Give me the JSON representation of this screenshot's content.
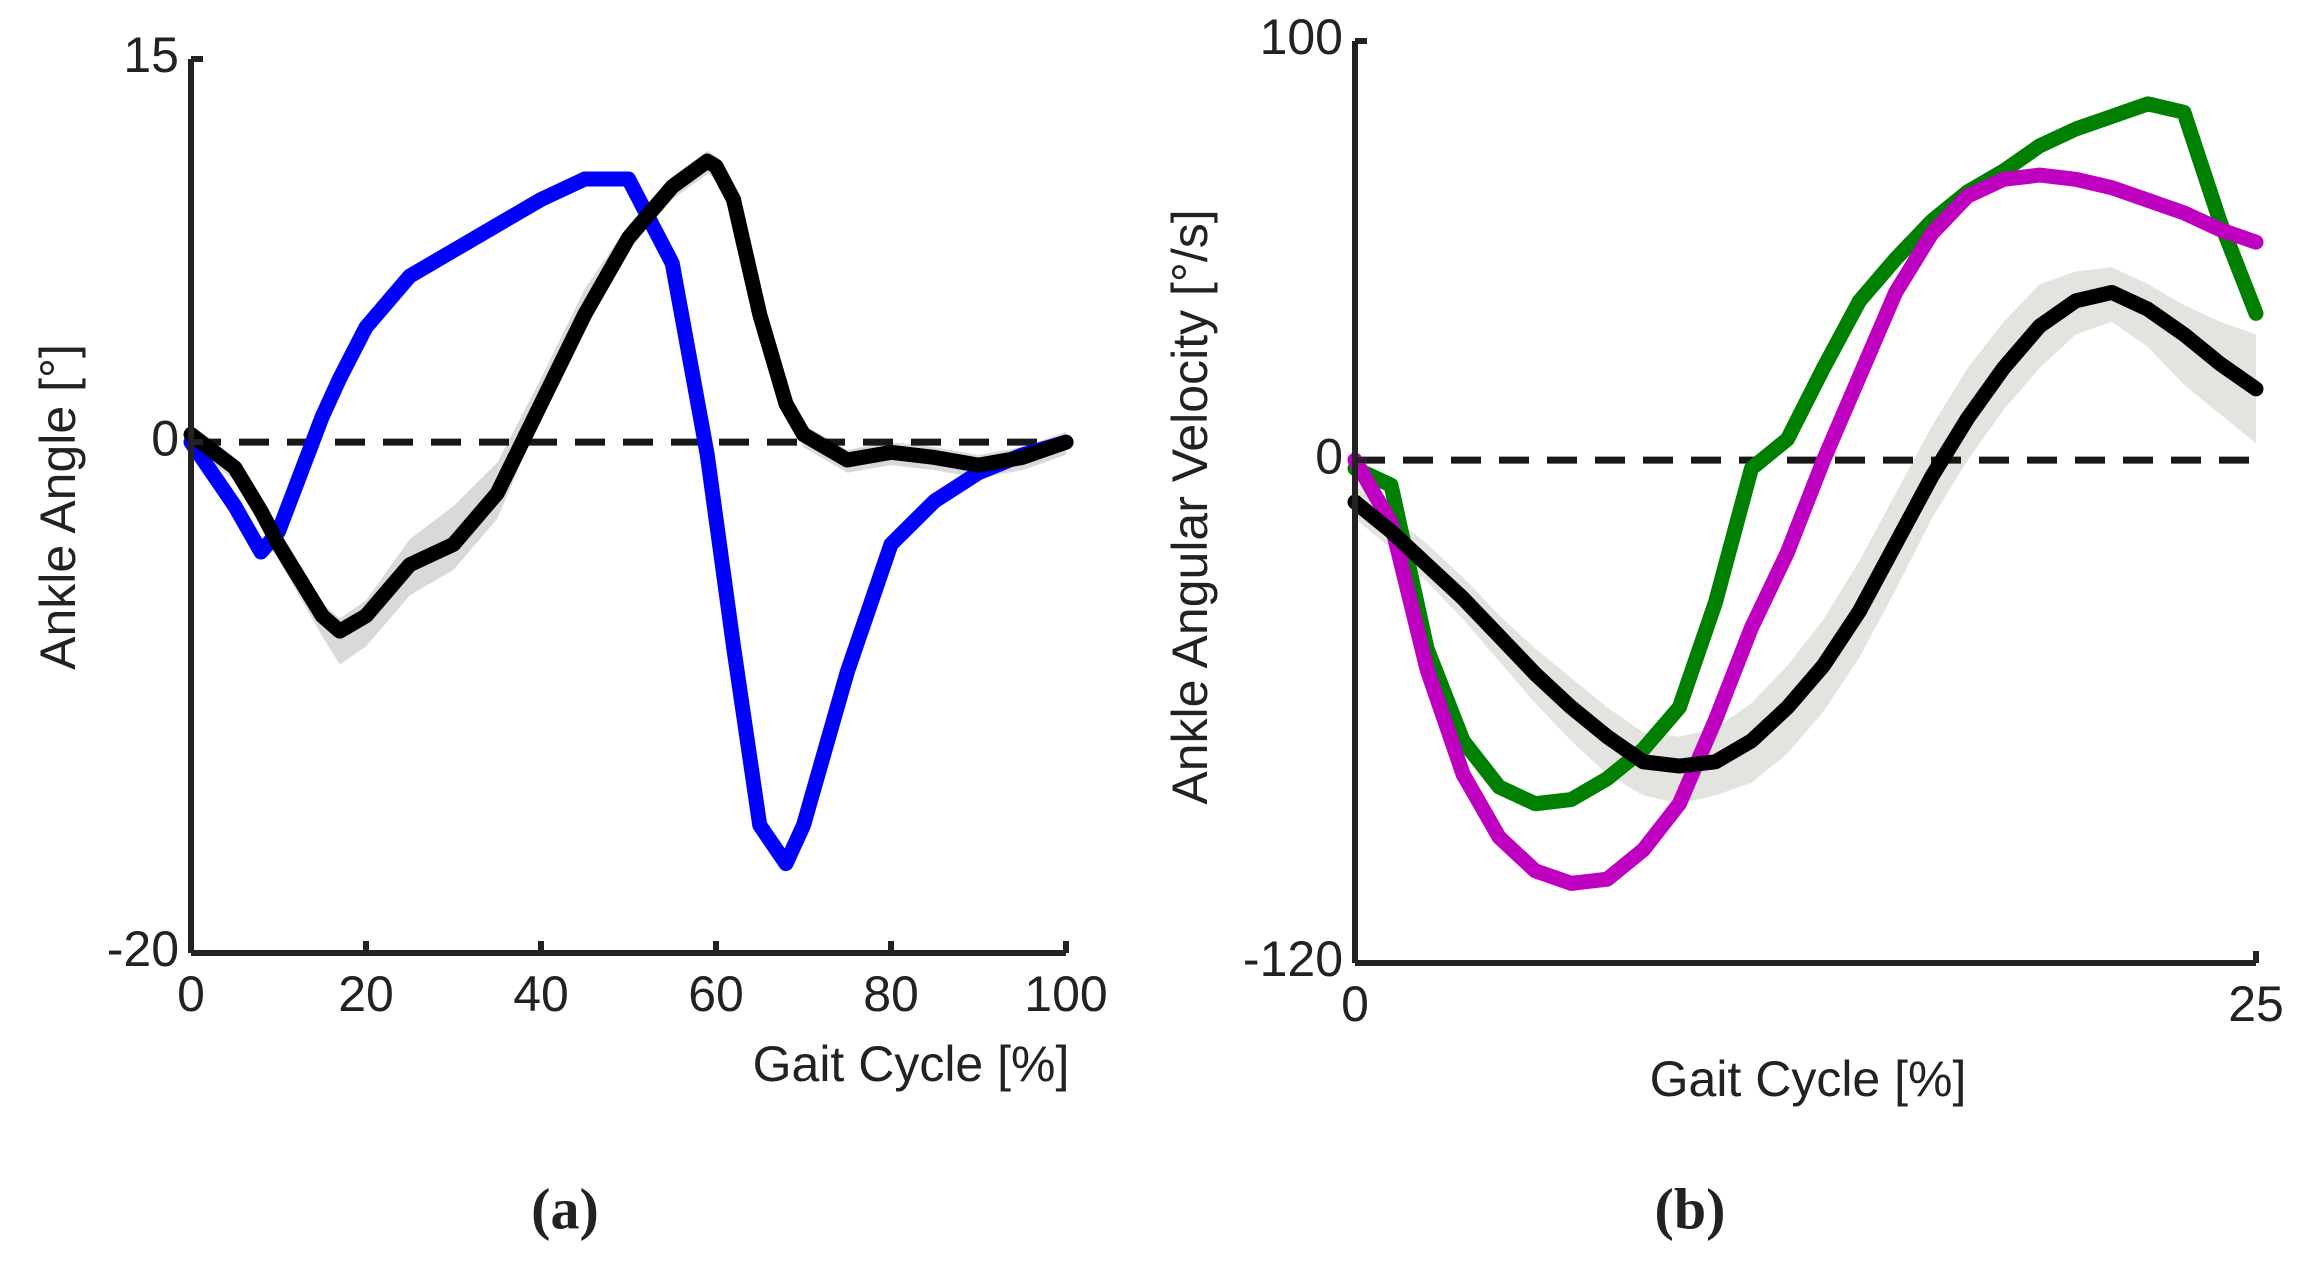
{
  "chart_data": [
    {
      "type": "line",
      "panel_label": "(a)",
      "xlabel": "Gait Cycle [%]",
      "ylabel": "Ankle Angle [°]",
      "xlim": [
        0,
        100
      ],
      "ylim": [
        -20,
        15
      ],
      "xticks": [
        0,
        20,
        40,
        60,
        80,
        100
      ],
      "yticks": [
        -20,
        0,
        15
      ],
      "hline": 0,
      "x": [
        0,
        5,
        8,
        10,
        15,
        17,
        20,
        25,
        30,
        35,
        40,
        45,
        50,
        55,
        59,
        60,
        62,
        65,
        68,
        70,
        75,
        80,
        85,
        90,
        95,
        100
      ],
      "band": {
        "color": "#d9d9d9",
        "lower": [
          -0.2,
          -1.5,
          -3.2,
          -4.6,
          -7.6,
          -8.7,
          -8,
          -6,
          -5,
          -3,
          1,
          4.5,
          7.5,
          9.5,
          10.5,
          10.3,
          9,
          4.5,
          1,
          -0.2,
          -1.2,
          -0.9,
          -1.1,
          -1.4,
          -1.1,
          -0.5
        ],
        "upper": [
          0.7,
          -0.6,
          -2.3,
          -3.6,
          -6.3,
          -6.9,
          -6.2,
          -3.8,
          -2.5,
          -0.8,
          2.5,
          6,
          8.5,
          10.4,
          11.4,
          11.2,
          9.9,
          5.4,
          1.9,
          0.7,
          -0.3,
          0,
          -0.2,
          -0.5,
          -0.2,
          0.4
        ]
      },
      "series": [
        {
          "color": "#0000ff",
          "values": [
            0,
            -2.5,
            -4.3,
            -3.5,
            1,
            2.5,
            4.5,
            6.5,
            7.5,
            8.5,
            9.5,
            10.3,
            10.3,
            7,
            -0.5,
            -3,
            -8,
            -15,
            -16.5,
            -15,
            -9,
            -4,
            -2.3,
            -1.2,
            -0.5,
            0
          ]
        },
        {
          "color": "#000000",
          "values": [
            0.3,
            -1,
            -2.7,
            -4,
            -6.8,
            -7.4,
            -6.8,
            -4.8,
            -4,
            -2,
            1.5,
            5,
            8,
            10,
            11,
            10.8,
            9.5,
            5,
            1.5,
            0.3,
            -0.7,
            -0.4,
            -0.6,
            -0.9,
            -0.6,
            0
          ]
        }
      ]
    },
    {
      "type": "line",
      "panel_label": "(b)",
      "xlabel": "Gait Cycle [%]",
      "ylabel": "Ankle Angular Velocity [°/s]",
      "xlim": [
        0,
        25
      ],
      "ylim": [
        -120,
        100
      ],
      "xticks": [
        0,
        25
      ],
      "yticks": [
        -120,
        0,
        100
      ],
      "hline": 0,
      "x": [
        0,
        1,
        2,
        3,
        4,
        5,
        6,
        7,
        8,
        9,
        10,
        11,
        12,
        13,
        14,
        15,
        16,
        17,
        18,
        19,
        20,
        21,
        22,
        23,
        24,
        25
      ],
      "band": {
        "color": "#e3e3e0",
        "lower": [
          -14,
          -21,
          -29,
          -38,
          -48,
          -58,
          -67,
          -75,
          -80,
          -82,
          -80,
          -77,
          -70,
          -60,
          -47,
          -31,
          -14,
          0,
          12,
          22,
          30,
          33,
          27,
          18,
          11,
          4
        ],
        "upper": [
          -6,
          -13,
          -20,
          -28,
          -37,
          -45,
          -52,
          -59,
          -65,
          -66,
          -64,
          -58,
          -49,
          -38,
          -24,
          -8,
          8,
          22,
          33,
          42,
          45,
          46,
          42,
          37,
          33,
          30
        ]
      },
      "series": [
        {
          "color": "#008000",
          "values": [
            -2,
            -6,
            -45,
            -67,
            -78,
            -82,
            -81,
            -76,
            -69,
            -59,
            -34,
            -2,
            5,
            22,
            38,
            48,
            57,
            64,
            69,
            75,
            79,
            82,
            85,
            83,
            57,
            35
          ]
        },
        {
          "color": "#c000c0",
          "values": [
            0,
            -15,
            -50,
            -75,
            -90,
            -98,
            -101,
            -100,
            -93,
            -82,
            -62,
            -40,
            -22,
            0,
            20,
            40,
            54,
            63,
            67,
            68,
            67,
            65,
            62,
            59,
            55,
            52
          ]
        },
        {
          "color": "#000000",
          "values": [
            -10,
            -17,
            -25,
            -33,
            -42,
            -51,
            -59,
            -66,
            -72,
            -73,
            -72,
            -67,
            -59,
            -49,
            -36,
            -20,
            -4,
            10,
            22,
            32,
            38,
            40,
            36,
            30,
            23,
            17
          ]
        }
      ]
    }
  ]
}
